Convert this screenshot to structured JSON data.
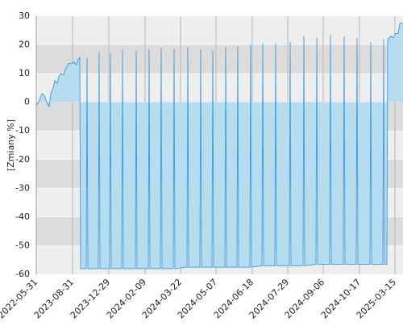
{
  "chart_data": {
    "type": "area",
    "y_label": "[Zmiany %]",
    "x": [
      0,
      3,
      7,
      10,
      13,
      16,
      18,
      21,
      23,
      26,
      28,
      31,
      34,
      37,
      40,
      44,
      47,
      50,
      52,
      54,
      55,
      62,
      63,
      64,
      77,
      78,
      79,
      91,
      92,
      93,
      106,
      107,
      108,
      123,
      124,
      125,
      139,
      140,
      141,
      154,
      155,
      156,
      170,
      171,
      172,
      187,
      188,
      189,
      203,
      204,
      205,
      218,
      219,
      220,
      234,
      235,
      236,
      249,
      250,
      251,
      265,
      266,
      267,
      280,
      281,
      282,
      296,
      297,
      298,
      314,
      315,
      316,
      331,
      332,
      333,
      347,
      348,
      349,
      364,
      365,
      366,
      381,
      382,
      383,
      397,
      398,
      399,
      414,
      415,
      416,
      430,
      431,
      432,
      435,
      436,
      440,
      443,
      446,
      449,
      451,
      455
    ],
    "series": [
      {
        "color": "#4aa0e0",
        "fill": "#b7dcef",
        "values": [
          -1,
          0,
          3,
          2.5,
          0,
          -1.5,
          3,
          5,
          7.5,
          6.5,
          9,
          10,
          9.5,
          12,
          13.5,
          13.5,
          14,
          13,
          15,
          15.5,
          -58,
          -58,
          15.5,
          -58,
          -58,
          17.5,
          -58,
          -58,
          17,
          -58,
          -58,
          18,
          -58,
          -58,
          18,
          -58,
          -58,
          18.5,
          -58,
          -58,
          19,
          -58,
          -58,
          18.5,
          -58,
          -57.5,
          19,
          -57.5,
          -57.5,
          18.5,
          -57.5,
          -57.5,
          18,
          -57.5,
          -57.5,
          19.5,
          -57.5,
          -57.5,
          19.5,
          -57.5,
          -57.5,
          20,
          -57.5,
          -57,
          20.5,
          -57,
          -57,
          20.5,
          -57,
          -57,
          21,
          -57,
          -57,
          23,
          -57,
          -56.5,
          22.5,
          -56.5,
          -56.5,
          23.5,
          -56.5,
          -56.5,
          23,
          -56.5,
          -56.5,
          22.5,
          -56.5,
          -56.5,
          21,
          -56.5,
          -56.5,
          22,
          -56.5,
          -56.5,
          22,
          23,
          22.5,
          24,
          24,
          27.5,
          27.5
        ]
      }
    ],
    "xlim": [
      0,
      455
    ],
    "xticks": [
      {
        "value": 0,
        "label": "2022-05-31"
      },
      {
        "value": 45,
        "label": "2023-08-31"
      },
      {
        "value": 90,
        "label": "2023-12-29"
      },
      {
        "value": 135,
        "label": "2024-02-09"
      },
      {
        "value": 179,
        "label": "2024-03-22"
      },
      {
        "value": 223,
        "label": "2024-05-07"
      },
      {
        "value": 268,
        "label": "2024-06-18"
      },
      {
        "value": 312,
        "label": "2024-07-29"
      },
      {
        "value": 356,
        "label": "2024-09-06"
      },
      {
        "value": 401,
        "label": "2024-10-17"
      },
      {
        "value": 445,
        "label": "2025-03-15"
      }
    ],
    "ylim": [
      -60,
      30
    ],
    "yticks": [
      -60,
      -50,
      -40,
      -30,
      -20,
      -10,
      0,
      10,
      20,
      30
    ],
    "grid": true
  }
}
